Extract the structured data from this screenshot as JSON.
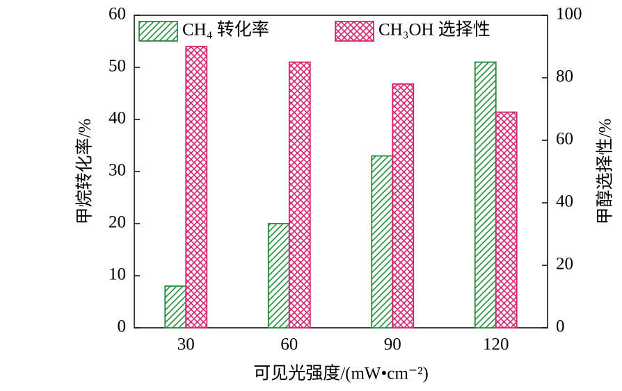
{
  "chart_data": {
    "type": "bar",
    "categories": [
      "30",
      "60",
      "90",
      "120"
    ],
    "x_label": "可见光强度/(mW•cm⁻²)",
    "y_label": "甲烷转化率/%",
    "y2_label": "甲醇选择性/%",
    "series": [
      {
        "name": "CH₄ 转化率",
        "color": "#238b3a",
        "hatch": "diagonal",
        "values": [
          8,
          20,
          33,
          51
        ]
      },
      {
        "name": "CH₃OH 选择性",
        "color": "#d6246e",
        "hatch": "cross",
        "axis": "y2",
        "values": [
          90,
          85,
          78,
          69
        ]
      }
    ],
    "ylim": [
      0,
      60
    ],
    "yticks": [
      0,
      10,
      20,
      30,
      40,
      50,
      60
    ],
    "y2lim": [
      0,
      100
    ],
    "y2ticks": [
      0,
      20,
      40,
      60,
      80,
      100
    ],
    "legend": "top"
  }
}
